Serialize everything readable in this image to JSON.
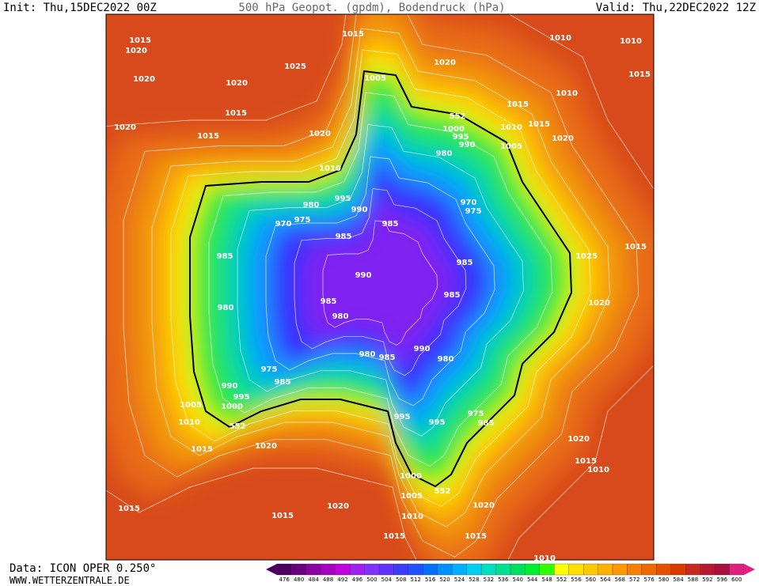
{
  "header": {
    "init": "Init: Thu,15DEC2022 00Z",
    "title": "500 hPa Geopot. (gpdm), Bodendruck (hPa)",
    "valid": "Valid: Thu,22DEC2022 12Z"
  },
  "footer": {
    "data": "Data: ICON OPER 0.250°",
    "site": "WWW.WETTERZENTRALE.DE"
  },
  "map": {
    "isobar_labels": [
      1015,
      1020,
      1020,
      1025,
      1015,
      1020,
      1010,
      1010,
      1015,
      1010,
      1020,
      1015,
      1015,
      1020,
      1015,
      1020,
      1005,
      552,
      1000,
      995,
      990,
      1010,
      1015,
      1005,
      1020,
      1010,
      980,
      970,
      975,
      995,
      990,
      980,
      975,
      970,
      985,
      985,
      985,
      1025,
      1015,
      985,
      990,
      985,
      985,
      1020,
      980,
      980,
      990,
      980,
      980,
      985,
      975,
      985,
      990,
      995,
      1005,
      1000,
      1010,
      552,
      995,
      995,
      975,
      985,
      1020,
      1015,
      1020,
      1015,
      1010,
      1000,
      552,
      1005,
      1020,
      1020,
      1015,
      1015,
      1010,
      1015,
      1015,
      1010
    ]
  },
  "colorbar": {
    "levels": [
      476,
      480,
      484,
      488,
      492,
      496,
      500,
      504,
      508,
      512,
      516,
      520,
      524,
      528,
      532,
      536,
      540,
      544,
      548,
      552,
      556,
      560,
      564,
      568,
      572,
      576,
      580,
      584,
      588,
      592,
      596,
      600
    ],
    "colors": [
      "#4b0060",
      "#6a0080",
      "#8a00a0",
      "#a800c0",
      "#c000e0",
      "#a020f0",
      "#8030ff",
      "#6030ff",
      "#3c3cff",
      "#2050ff",
      "#0070ff",
      "#0090ff",
      "#00b0ff",
      "#00d0f0",
      "#00e0c0",
      "#00e090",
      "#00e060",
      "#00f030",
      "#30ff00",
      "#ffff00",
      "#ffe000",
      "#ffc800",
      "#ffb000",
      "#ff9800",
      "#f88000",
      "#f06800",
      "#e85000",
      "#d83c00",
      "#c82820",
      "#b81830",
      "#a81040",
      "#e0207f"
    ]
  }
}
